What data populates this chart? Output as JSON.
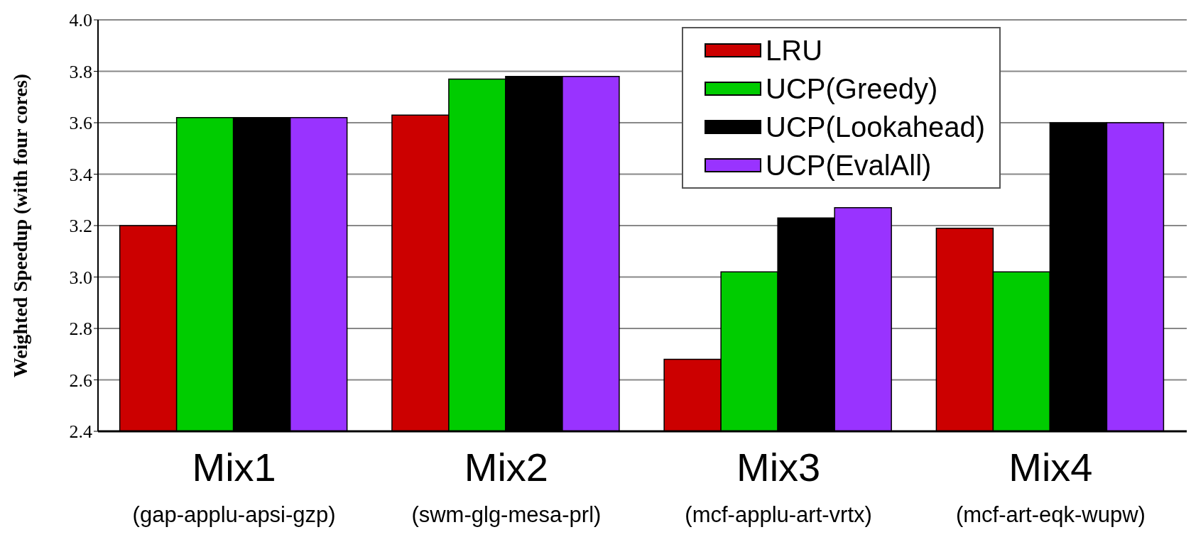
{
  "chart_data": {
    "type": "bar",
    "ylabel": "Weighted Speedup (with four cores)",
    "categories": [
      "Mix1\n(gap-applu-apsi-gzp)",
      "Mix2\n(swm-glg-mesa-prl)",
      "Mix3\n(mcf-applu-art-vrtx)",
      "Mix4\n(mcf-art-eqk-wupw)"
    ],
    "series": [
      {
        "name": "LRU",
        "color": "#cc0000",
        "values": [
          3.2,
          3.63,
          2.68,
          3.19
        ]
      },
      {
        "name": "UCP(Greedy)",
        "color": "#00cc00",
        "values": [
          3.62,
          3.77,
          3.02,
          3.02
        ]
      },
      {
        "name": "UCP(Lookahead)",
        "color": "#000000",
        "values": [
          3.62,
          3.78,
          3.23,
          3.6
        ]
      },
      {
        "name": "UCP(EvalAll)",
        "color": "#9933ff",
        "values": [
          3.62,
          3.78,
          3.27,
          3.6
        ]
      }
    ],
    "ylim": [
      2.4,
      4.0
    ],
    "yticks": [
      2.4,
      2.6,
      2.8,
      {
        "value": 3,
        "label": "3.0"
      },
      3.2,
      3.4,
      3.6,
      3.8,
      {
        "value": 4,
        "label": "4.0"
      }
    ],
    "grid": "y",
    "legend": "top right"
  }
}
